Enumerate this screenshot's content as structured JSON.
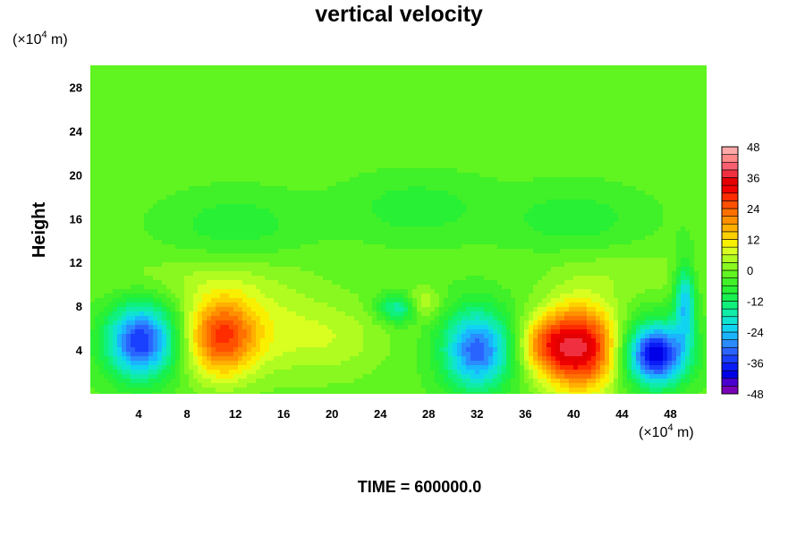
{
  "chart_data": {
    "type": "heatmap",
    "title": "vertical velocity",
    "ylabel": "Height",
    "x_unit": {
      "prefix": "(×10",
      "exp": "4",
      "suffix": " m)"
    },
    "y_unit": {
      "prefix": "(×10",
      "exp": "4",
      "suffix": " m)"
    },
    "xlim": [
      0,
      51
    ],
    "ylim": [
      0,
      30
    ],
    "x_ticks": [
      "4",
      "8",
      "12",
      "16",
      "20",
      "24",
      "28",
      "32",
      "36",
      "40",
      "44",
      "48"
    ],
    "y_ticks": [
      "4",
      "8",
      "12",
      "16",
      "20",
      "24",
      "28"
    ],
    "colorbar": {
      "range": [
        -48,
        48
      ],
      "step": 4,
      "tick_labels": [
        "48",
        "36",
        "24",
        "12",
        "0",
        "-12",
        "-24",
        "-36",
        "-48"
      ],
      "colors": [
        "#7a00b8",
        "#4a00d0",
        "#0000e8",
        "#0a1cf5",
        "#1a40ff",
        "#2a64ff",
        "#2a8cff",
        "#1ab4ff",
        "#10d4f0",
        "#10e4d0",
        "#10eca8",
        "#10f07c",
        "#18f050",
        "#28f034",
        "#40f028",
        "#60f420",
        "#88f820",
        "#b0fc20",
        "#d8ff20",
        "#f8f000",
        "#ffd000",
        "#ffb000",
        "#ff9000",
        "#ff7000",
        "#ff5000",
        "#ff2c00",
        "#f00000",
        "#e40000",
        "#f03040",
        "#f86070",
        "#ff8888",
        "#ffa8a8"
      ]
    },
    "background_value": -2,
    "features": [
      {
        "x": 4.2,
        "y": 4.8,
        "sx": 2.0,
        "sy": 2.4,
        "value": -34
      },
      {
        "x": 10.8,
        "y": 5.2,
        "sx": 2.0,
        "sy": 2.6,
        "value": 26
      },
      {
        "x": 14.5,
        "y": 6.0,
        "sx": 3.5,
        "sy": 3.0,
        "value": 8
      },
      {
        "x": 20.5,
        "y": 5.0,
        "sx": 3.0,
        "sy": 2.5,
        "value": 6
      },
      {
        "x": 25.5,
        "y": 7.8,
        "sx": 1.2,
        "sy": 0.9,
        "value": -16
      },
      {
        "x": 27.5,
        "y": 8.2,
        "sx": 1.0,
        "sy": 1.0,
        "value": 10
      },
      {
        "x": 32.0,
        "y": 4.0,
        "sx": 2.0,
        "sy": 2.6,
        "value": -30
      },
      {
        "x": 37.5,
        "y": 4.5,
        "sx": 1.5,
        "sy": 1.8,
        "value": 14
      },
      {
        "x": 40.5,
        "y": 4.2,
        "sx": 2.2,
        "sy": 2.8,
        "value": 38
      },
      {
        "x": 46.8,
        "y": 3.6,
        "sx": 1.8,
        "sy": 2.0,
        "value": -40
      },
      {
        "x": 49.2,
        "y": 8.5,
        "sx": 0.6,
        "sy": 2.5,
        "value": -22
      },
      {
        "x": 12.0,
        "y": 15.5,
        "sx": 4.0,
        "sy": 2.0,
        "value": -6
      },
      {
        "x": 27.0,
        "y": 17.0,
        "sx": 4.0,
        "sy": 2.0,
        "value": -6
      },
      {
        "x": 40.0,
        "y": 16.0,
        "sx": 4.0,
        "sy": 2.0,
        "value": -6
      },
      {
        "x": 8.0,
        "y": 10.5,
        "sx": 6.0,
        "sy": 1.5,
        "value": 4
      },
      {
        "x": 45.0,
        "y": 11.0,
        "sx": 5.0,
        "sy": 1.5,
        "value": 4
      }
    ]
  },
  "footer": {
    "time_label": "TIME = 600000.0"
  }
}
